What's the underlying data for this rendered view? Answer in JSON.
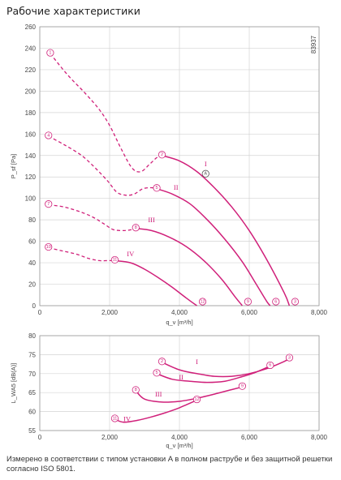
{
  "page_title": "Рабочие характеристики",
  "footnote": "Измерено в соответствии с типом установки A в полном раструбе и без защитной решетки согласно ISO 5801.",
  "colors": {
    "curve": "#d0207a",
    "grid": "#d4d4d4",
    "marker_bg": "#ffffff",
    "marker_special": "#555555"
  },
  "chart_data": [
    {
      "type": "line",
      "ylabel": "P_sf [Pa]",
      "xlabel": "q_v [m³/h]",
      "code_label": "83937",
      "xlim": [
        0,
        8000
      ],
      "ylim": [
        0,
        260
      ],
      "xticks": [
        "0",
        "2,000",
        "4,000",
        "6,000",
        "8,000"
      ],
      "yticks": [
        "0",
        "20",
        "40",
        "60",
        "80",
        "100",
        "120",
        "140",
        "160",
        "180",
        "200",
        "220",
        "240",
        "260"
      ],
      "dashed_limits": [
        {
          "x": [
            300,
            800,
            1300,
            1700,
            2000,
            2350,
            2650,
            2900,
            3150,
            3350,
            3500
          ],
          "y": [
            235,
            215,
            198,
            183,
            168,
            145,
            128,
            125,
            132,
            138,
            140
          ]
        },
        {
          "x": [
            250,
            700,
            1200,
            1600,
            1950,
            2200,
            2450,
            2700,
            2950,
            3200,
            3350
          ],
          "y": [
            158,
            150,
            140,
            128,
            116,
            106,
            103,
            104,
            109,
            110,
            109
          ]
        },
        {
          "x": [
            250,
            700,
            1200,
            1550,
            1850,
            2100,
            2400,
            2650,
            2750
          ],
          "y": [
            94,
            92,
            87,
            82,
            76,
            71,
            70,
            71,
            72
          ]
        },
        {
          "x": [
            250,
            650,
            1050,
            1400,
            1700,
            1950,
            2150
          ],
          "y": [
            54,
            51,
            48,
            44,
            42,
            42,
            42
          ]
        }
      ],
      "series": [
        {
          "name": "I",
          "x": [
            3500,
            4000,
            4500,
            5000,
            5500,
            6000,
            6500,
            7000,
            7150
          ],
          "y": [
            140,
            135,
            125,
            110,
            92,
            70,
            43,
            12,
            0
          ]
        },
        {
          "name": "II",
          "x": [
            3350,
            3800,
            4300,
            4800,
            5300,
            5800,
            6200,
            6500,
            6600
          ],
          "y": [
            109,
            104,
            95,
            80,
            62,
            41,
            20,
            4,
            0
          ]
        },
        {
          "name": "III",
          "x": [
            2750,
            3200,
            3700,
            4200,
            4700,
            5200,
            5600,
            5800
          ],
          "y": [
            72,
            70,
            64,
            55,
            42,
            25,
            8,
            0
          ]
        },
        {
          "name": "IV",
          "x": [
            2150,
            2600,
            3000,
            3400,
            3800,
            4200,
            4500
          ],
          "y": [
            42,
            40,
            34,
            26,
            17,
            7,
            0
          ]
        }
      ],
      "point_labels": [
        {
          "label": "①",
          "x": 300,
          "y": 235
        },
        {
          "label": "②",
          "x": 3500,
          "y": 140
        },
        {
          "label": "③",
          "x": 7150,
          "y": 0
        },
        {
          "label": "④",
          "x": 250,
          "y": 158
        },
        {
          "label": "⑤",
          "x": 3350,
          "y": 109
        },
        {
          "label": "⑥",
          "x": 6600,
          "y": 0
        },
        {
          "label": "⑦",
          "x": 250,
          "y": 94
        },
        {
          "label": "⑧",
          "x": 2750,
          "y": 72
        },
        {
          "label": "⑨",
          "x": 5800,
          "y": 0
        },
        {
          "label": "⑩",
          "x": 250,
          "y": 54
        },
        {
          "label": "⑪",
          "x": 2150,
          "y": 42
        },
        {
          "label": "⑫",
          "x": 4500,
          "y": 0
        },
        {
          "label": "Ⓐ",
          "x": 4750,
          "y": 123
        }
      ],
      "curve_labels": [
        {
          "label": "I",
          "x": 4750,
          "y": 130
        },
        {
          "label": "II",
          "x": 3900,
          "y": 108
        },
        {
          "label": "III",
          "x": 3200,
          "y": 78
        },
        {
          "label": "IV",
          "x": 2600,
          "y": 46
        }
      ]
    },
    {
      "type": "line",
      "ylabel": "L_WA5 [dB(A)]",
      "xlabel": "q_v [m³/h]",
      "xlim": [
        0,
        8000
      ],
      "ylim": [
        55,
        80
      ],
      "xticks": [
        "0",
        "2,000",
        "4,000",
        "6,000",
        "8,000"
      ],
      "yticks": [
        "55",
        "60",
        "65",
        "70",
        "75",
        "80"
      ],
      "series": [
        {
          "name": "I",
          "x": [
            3500,
            4000,
            4500,
            5000,
            5500,
            6000,
            6500,
            7000,
            7150
          ],
          "y": [
            73,
            71,
            70,
            69.3,
            69.3,
            70,
            71.3,
            73.2,
            74
          ]
        },
        {
          "name": "II",
          "x": [
            3350,
            3800,
            4300,
            4800,
            5300,
            5800,
            6200,
            6600
          ],
          "y": [
            70,
            68.5,
            68,
            67.7,
            68,
            69.2,
            70.4,
            72
          ]
        },
        {
          "name": "III",
          "x": [
            2750,
            3000,
            3500,
            4000,
            4500,
            5000,
            5500,
            5800
          ],
          "y": [
            65.5,
            63.3,
            62.5,
            62.7,
            63.5,
            64.6,
            65.8,
            66.5
          ]
        },
        {
          "name": "IV",
          "x": [
            2150,
            2400,
            2800,
            3200,
            3600,
            4000,
            4500
          ],
          "y": [
            58,
            57.2,
            57.7,
            58.6,
            59.7,
            61,
            63
          ]
        }
      ],
      "point_labels": [
        {
          "label": "②",
          "x": 3500,
          "y": 73
        },
        {
          "label": "③",
          "x": 7150,
          "y": 74
        },
        {
          "label": "⑤",
          "x": 3350,
          "y": 70
        },
        {
          "label": "⑥",
          "x": 6600,
          "y": 72
        },
        {
          "label": "⑧",
          "x": 2750,
          "y": 65.5
        },
        {
          "label": "⑨",
          "x": 5800,
          "y": 66.5
        },
        {
          "label": "⑪",
          "x": 2150,
          "y": 58
        },
        {
          "label": "⑫",
          "x": 4500,
          "y": 63
        }
      ],
      "curve_labels": [
        {
          "label": "I",
          "x": 4500,
          "y": 72.5
        },
        {
          "label": "II",
          "x": 4050,
          "y": 68.5
        },
        {
          "label": "III",
          "x": 3400,
          "y": 64
        },
        {
          "label": "IV",
          "x": 2500,
          "y": 57.5
        }
      ]
    }
  ]
}
